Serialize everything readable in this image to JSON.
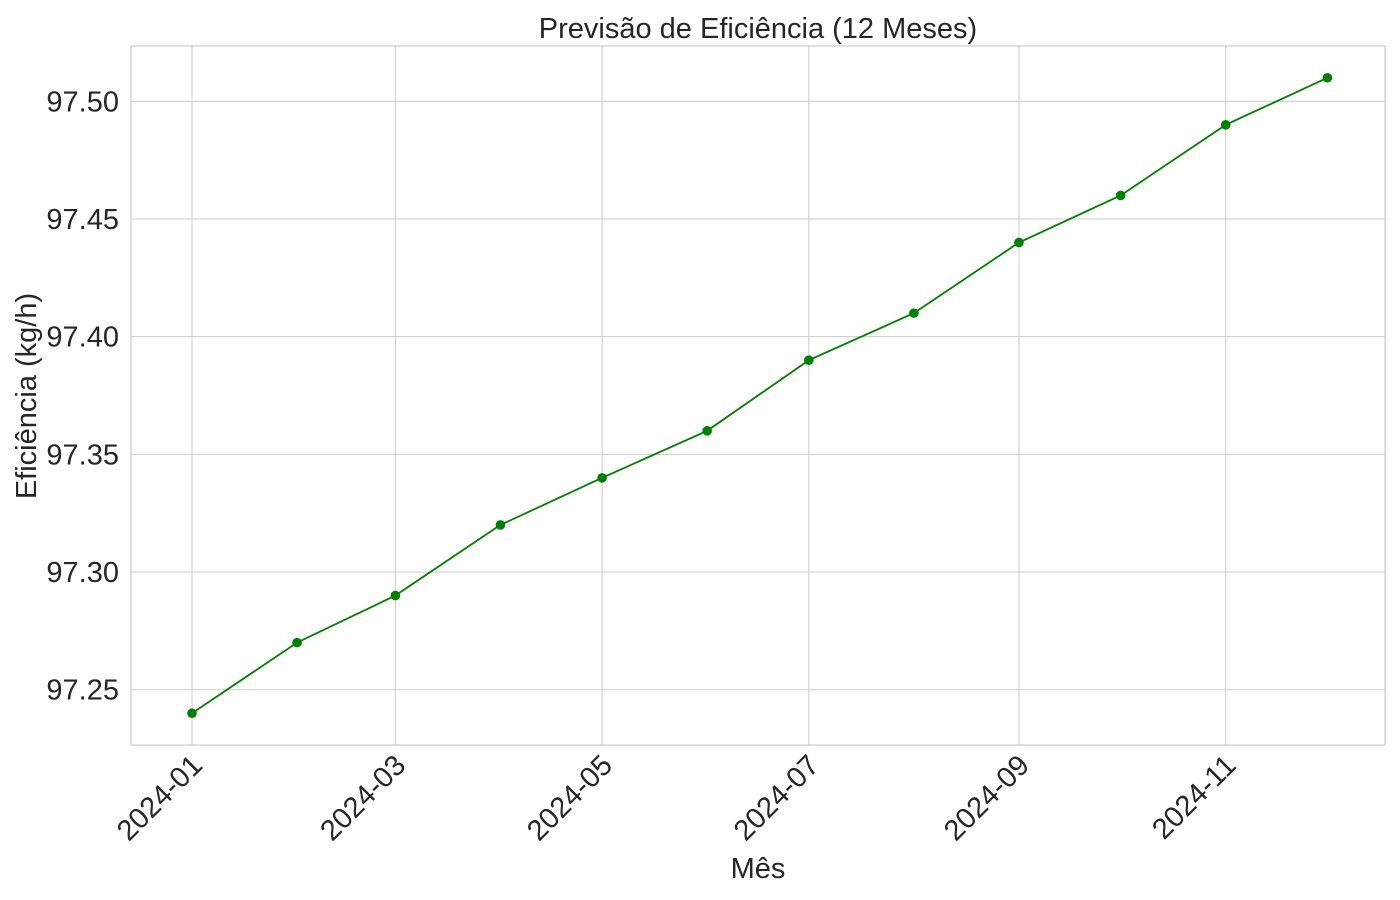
{
  "chart_data": {
    "type": "line",
    "title": "Previsão de Eficiência (12 Meses)",
    "xlabel": "Mês",
    "ylabel": "Eficiência (kg/h)",
    "x": [
      "2024-01",
      "2024-02",
      "2024-03",
      "2024-04",
      "2024-05",
      "2024-06",
      "2024-07",
      "2024-08",
      "2024-09",
      "2024-10",
      "2024-11",
      "2024-12"
    ],
    "series": [
      {
        "values": [
          97.24,
          97.27,
          97.29,
          97.32,
          97.34,
          97.36,
          97.39,
          97.41,
          97.44,
          97.46,
          97.49,
          97.51
        ],
        "color": "#008000",
        "marker": "circle"
      }
    ],
    "x_tick_labels": [
      "2024-01",
      "2024-03",
      "2024-05",
      "2024-07",
      "2024-09",
      "2024-11"
    ],
    "y_tick_labels": [
      "97.25",
      "97.30",
      "97.35",
      "97.40",
      "97.45",
      "97.50"
    ],
    "y_ticks": [
      97.25,
      97.3,
      97.35,
      97.4,
      97.45,
      97.5
    ],
    "ylim": [
      97.2265,
      97.5235
    ],
    "xlim": [
      "2023-12-14",
      "2024-12-18"
    ],
    "grid": true,
    "legend": "none"
  }
}
